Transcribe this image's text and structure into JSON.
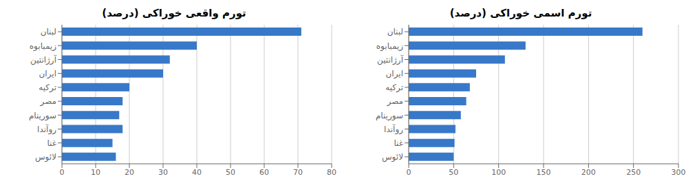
{
  "chart_data": [
    {
      "type": "bar",
      "orientation": "horizontal",
      "title": "تورم واقعی خوراکی (درصد)",
      "categories": [
        "لبنان",
        "زیمبابوه",
        "آرژانتین",
        "ایران",
        "ترکیه",
        "مصر",
        "سورینام",
        "روآندا",
        "غنا",
        "لائوس"
      ],
      "values": [
        71,
        40,
        32,
        30,
        20,
        18,
        17,
        18,
        15,
        16
      ],
      "color": "#3878c8",
      "xlim": [
        0,
        80
      ],
      "xticks": [
        0,
        10,
        20,
        30,
        40,
        50,
        60,
        70,
        80
      ],
      "grid": true
    },
    {
      "type": "bar",
      "orientation": "horizontal",
      "title": "تورم اسمی خوراکی (درصد)",
      "categories": [
        "لبنان",
        "زیمبابوه",
        "آرژانتین",
        "ایران",
        "ترکیه",
        "مصر",
        "سورینام",
        "روآندا",
        "غنا",
        "لائوس"
      ],
      "values": [
        260,
        130,
        107,
        75,
        68,
        64,
        58,
        52,
        51,
        50
      ],
      "color": "#3878c8",
      "xlim": [
        0,
        300
      ],
      "xticks": [
        0,
        50,
        100,
        150,
        200,
        250,
        300
      ],
      "grid": true
    }
  ]
}
